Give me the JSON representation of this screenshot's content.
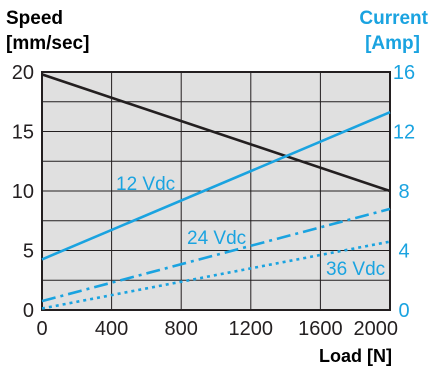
{
  "chart_data": {
    "type": "line",
    "xlabel": "Load [N]",
    "ylabel_left": [
      "Speed",
      "[mm/sec]"
    ],
    "ylabel_right": [
      "Current",
      "[Amp]"
    ],
    "x_ticks": [
      0,
      400,
      800,
      1200,
      1600,
      2000
    ],
    "y_left_ticks": [
      0,
      5,
      10,
      15,
      20
    ],
    "y_right_ticks": [
      0,
      4,
      8,
      12,
      16
    ],
    "xlim": [
      0,
      2000
    ],
    "ylim_left": [
      0,
      20
    ],
    "ylim_right": [
      0,
      16
    ],
    "grid": true,
    "background_color": "#e0e0e0",
    "series": [
      {
        "axis": "left",
        "color": "#231f20",
        "style": "solid",
        "x": [
          0,
          2000
        ],
        "y": [
          19.8,
          10.0
        ]
      },
      {
        "name": "12 Vdc",
        "axis": "right",
        "color": "#1aa3e0",
        "style": "solid",
        "x": [
          0,
          2000
        ],
        "y": [
          3.4,
          13.3
        ]
      },
      {
        "name": "24 Vdc",
        "axis": "right",
        "color": "#1aa3e0",
        "style": "dashdot",
        "x": [
          0,
          2000
        ],
        "y": [
          0.6,
          6.8
        ]
      },
      {
        "name": "36 Vdc",
        "axis": "right",
        "color": "#1aa3e0",
        "style": "dotted",
        "x": [
          0,
          2000
        ],
        "y": [
          0.1,
          4.6
        ]
      }
    ]
  }
}
